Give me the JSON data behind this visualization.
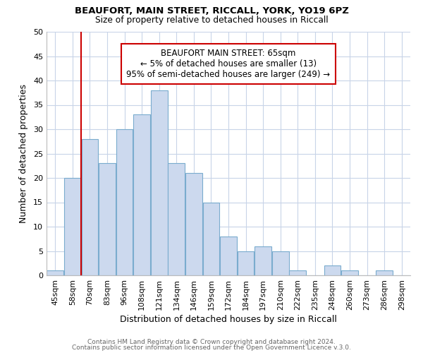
{
  "title": "BEAUFORT, MAIN STREET, RICCALL, YORK, YO19 6PZ",
  "subtitle": "Size of property relative to detached houses in Riccall",
  "xlabel": "Distribution of detached houses by size in Riccall",
  "ylabel": "Number of detached properties",
  "categories": [
    "45sqm",
    "58sqm",
    "70sqm",
    "83sqm",
    "96sqm",
    "108sqm",
    "121sqm",
    "134sqm",
    "146sqm",
    "159sqm",
    "172sqm",
    "184sqm",
    "197sqm",
    "210sqm",
    "222sqm",
    "235sqm",
    "248sqm",
    "260sqm",
    "273sqm",
    "286sqm",
    "298sqm"
  ],
  "values": [
    1,
    20,
    28,
    23,
    30,
    33,
    38,
    23,
    21,
    15,
    8,
    5,
    6,
    5,
    1,
    0,
    2,
    1,
    0,
    1,
    0
  ],
  "bar_color": "#ccd9ee",
  "bar_edge_color": "#7aacce",
  "vline_index": 2,
  "vline_color": "#cc0000",
  "annotation_title": "BEAUFORT MAIN STREET: 65sqm",
  "annotation_line1": "← 5% of detached houses are smaller (13)",
  "annotation_line2": "95% of semi-detached houses are larger (249) →",
  "annotation_box_color": "#ffffff",
  "annotation_box_edge": "#cc0000",
  "ylim": [
    0,
    50
  ],
  "footer1": "Contains HM Land Registry data © Crown copyright and database right 2024.",
  "footer2": "Contains public sector information licensed under the Open Government Licence v.3.0.",
  "background_color": "#ffffff",
  "grid_color": "#c8d4e8"
}
